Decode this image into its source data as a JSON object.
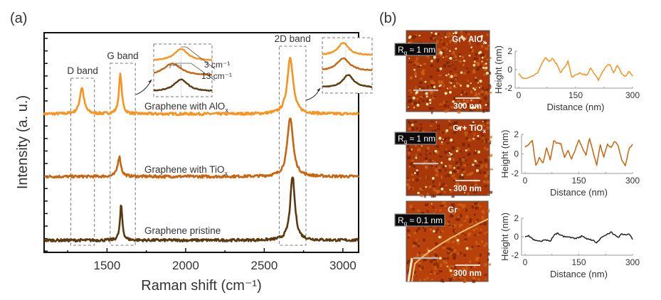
{
  "chart_data": [
    {
      "panel": "(a)",
      "type": "line",
      "xlabel": "Raman shift (cm⁻¹)",
      "ylabel": "Intensity (a. u.)",
      "xlim": [
        1100,
        3100
      ],
      "xticks": [
        1500,
        2000,
        2500,
        3000
      ],
      "ylim": [
        0,
        1
      ],
      "grid": false,
      "band_labels": [
        "D band",
        "G band",
        "2D band"
      ],
      "band_ranges": [
        [
          1270,
          1420
        ],
        [
          1520,
          1680
        ],
        [
          2595,
          2765
        ]
      ],
      "inset_annotations": [
        "3 cm⁻¹",
        "13 cm⁻¹"
      ],
      "series": [
        {
          "name": "Graphene with AlOx",
          "label": "Graphene with AlO",
          "label_sub": "x",
          "color": "#F7931E",
          "baseline": 0.63,
          "peaks": [
            {
              "band": "D",
              "center": 1340,
              "height": 0.12,
              "width": 16
            },
            {
              "band": "G",
              "center": 1585,
              "height": 0.18,
              "width": 11
            },
            {
              "band": "2D",
              "center": 2665,
              "height": 0.26,
              "width": 22
            }
          ]
        },
        {
          "name": "Graphene with TiOx",
          "label": "Graphene with TiO",
          "label_sub": "x",
          "color": "#C8650F",
          "baseline": 0.345,
          "peaks": [
            {
              "band": "G",
              "center": 1578,
              "height": 0.09,
              "width": 13
            },
            {
              "band": "2D",
              "center": 2665,
              "height": 0.27,
              "width": 22
            }
          ]
        },
        {
          "name": "Graphene pristine",
          "label": "Graphene pristine",
          "label_sub": "",
          "color": "#5C3A0E",
          "baseline": 0.055,
          "peaks": [
            {
              "band": "G",
              "center": 1590,
              "height": 0.16,
              "width": 9
            },
            {
              "band": "2D",
              "center": 2680,
              "height": 0.29,
              "width": 18
            }
          ]
        }
      ]
    },
    {
      "panel": "(b)",
      "type": "line",
      "title": "Gr+ AlOx",
      "title_main": "Gr+ AlO",
      "title_sub": "x",
      "roughness": "R",
      "roughness_sub": "q",
      "roughness_value": " ≈ 1 nm",
      "scalebar": "300 nm",
      "xlabel": "Distance (nm)",
      "ylabel": "Height (nm)",
      "xlim": [
        0,
        300
      ],
      "ylim": [
        -2,
        2
      ],
      "xticks": [
        0,
        150,
        300
      ],
      "yticks": [
        -2,
        0,
        2
      ],
      "color": "#F7931E",
      "x": [
        0,
        10,
        20,
        30,
        40,
        50,
        60,
        70,
        80,
        90,
        100,
        110,
        120,
        130,
        140,
        150,
        160,
        170,
        180,
        190,
        200,
        210,
        220,
        230,
        240,
        250,
        260,
        270,
        280,
        290,
        300
      ],
      "y": [
        -0.4,
        -0.9,
        -1.0,
        -0.8,
        -0.6,
        -0.3,
        0.5,
        1.3,
        0.9,
        1.2,
        0.6,
        -0.3,
        0.2,
        0.9,
        -0.8,
        -0.6,
        -0.4,
        -0.5,
        -0.6,
        0.2,
        -0.5,
        -1.1,
        -0.3,
        0.4,
        0.6,
        -0.4,
        0.5,
        -0.3,
        -0.8,
        -0.2,
        -0.7
      ]
    },
    {
      "panel": "(b)",
      "type": "line",
      "title": "Gr+ TiOx",
      "title_main": "Gr+  TiO",
      "title_sub": "x",
      "roughness": "R",
      "roughness_sub": "q",
      "roughness_value": " ≈ 1 nm",
      "scalebar": "300 nm",
      "xlabel": "Distance (nm)",
      "ylabel": "Height (nm)",
      "xlim": [
        0,
        300
      ],
      "ylim": [
        -2,
        2
      ],
      "xticks": [
        0,
        150,
        300
      ],
      "yticks": [
        -2,
        0,
        2
      ],
      "color": "#C8650F",
      "x": [
        0,
        10,
        20,
        30,
        40,
        50,
        60,
        70,
        80,
        90,
        100,
        110,
        120,
        130,
        140,
        150,
        160,
        170,
        180,
        190,
        200,
        210,
        220,
        230,
        240,
        250,
        260,
        270,
        280,
        290,
        300
      ],
      "y": [
        0.7,
        1.0,
        1.4,
        -1.2,
        -0.4,
        -0.9,
        0.6,
        -0.6,
        1.3,
        1.1,
        1.0,
        -0.3,
        0.3,
        -0.5,
        0.4,
        1.4,
        0.6,
        -0.1,
        1.6,
        0.2,
        -1.1,
        0.9,
        -0.3,
        1.0,
        0.6,
        1.3,
        0.8,
        -0.6,
        -1.2,
        0.5,
        1.0
      ]
    },
    {
      "panel": "(b)",
      "type": "line",
      "title": "Gr",
      "title_main": "Gr",
      "title_sub": "",
      "roughness": "R",
      "roughness_sub": "q",
      "roughness_value": " ≈ 0.1 nm",
      "scalebar": "300 nm",
      "xlabel": "Distance (nm)",
      "ylabel": "Height (nm)",
      "xlim": [
        0,
        300
      ],
      "ylim": [
        -2,
        2
      ],
      "xticks": [
        0,
        150,
        300
      ],
      "yticks": [
        -2,
        0,
        2
      ],
      "color": "#222222",
      "x": [
        0,
        10,
        20,
        30,
        40,
        50,
        60,
        70,
        80,
        90,
        100,
        110,
        120,
        130,
        140,
        150,
        160,
        170,
        180,
        190,
        200,
        210,
        220,
        230,
        240,
        250,
        260,
        270,
        280,
        290,
        300
      ],
      "y": [
        0.0,
        0.1,
        -0.2,
        -0.4,
        -0.5,
        -0.4,
        -0.4,
        -0.5,
        0.1,
        0.4,
        0.2,
        0.0,
        0.0,
        -0.1,
        -0.2,
        -0.1,
        0.1,
        -0.2,
        -0.3,
        -0.4,
        -0.7,
        -0.2,
        0.1,
        0.3,
        0.5,
        0.2,
        -0.1,
        0.3,
        0.2,
        0.3,
        -0.3
      ]
    }
  ],
  "panel_labels": {
    "a": "(a)",
    "b": "(b)"
  }
}
